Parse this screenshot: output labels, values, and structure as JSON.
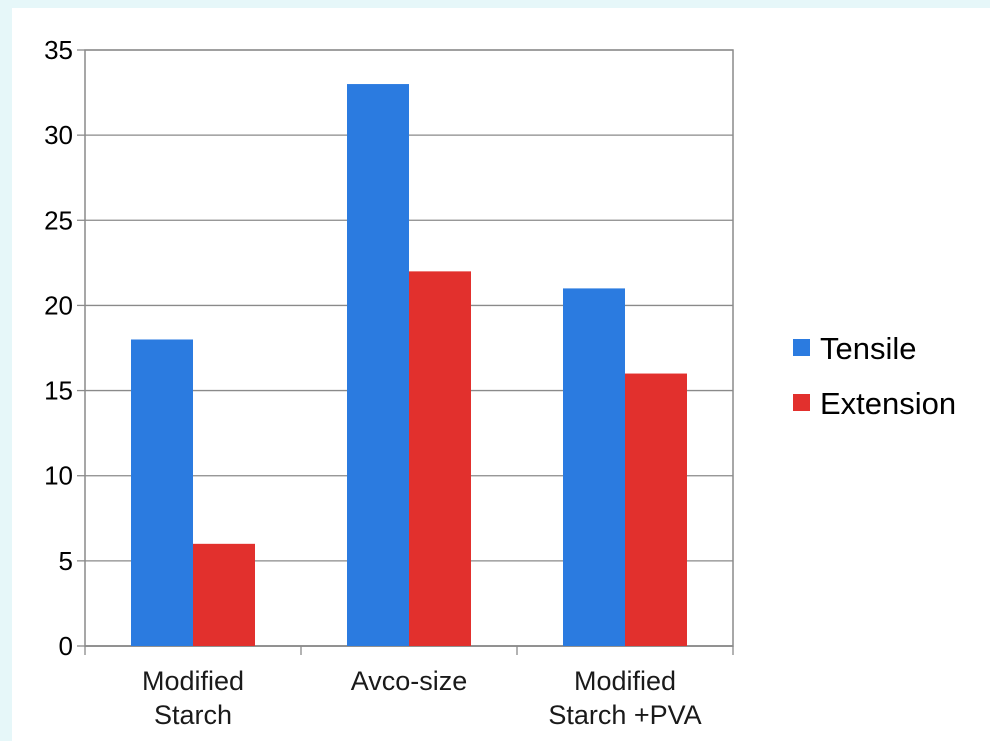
{
  "chart_data": {
    "type": "bar",
    "title": "",
    "xlabel": "",
    "ylabel": "",
    "ylim": [
      0,
      35
    ],
    "yticks": [
      0,
      5,
      10,
      15,
      20,
      25,
      30,
      35
    ],
    "grid": true,
    "legend_position": "right",
    "categories": [
      [
        "Modified",
        "Starch"
      ],
      [
        "Avco-size"
      ],
      [
        "Modified",
        "Starch +PVA"
      ]
    ],
    "series": [
      {
        "name": "Tensile",
        "color": "#2b7be0",
        "values": [
          18,
          33,
          21
        ]
      },
      {
        "name": "Extension",
        "color": "#e2302d",
        "values": [
          6,
          22,
          16
        ]
      }
    ]
  }
}
